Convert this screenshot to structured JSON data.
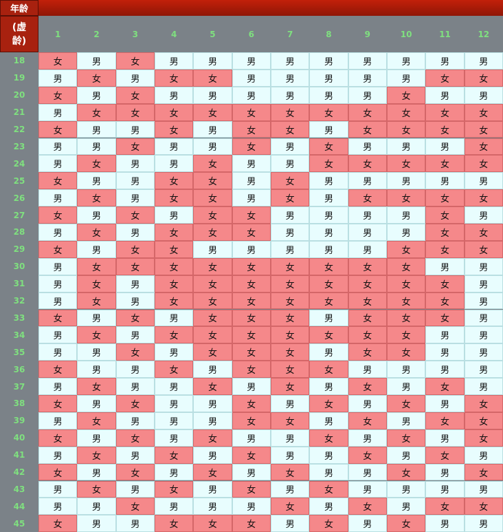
{
  "header": {
    "title_top": "年龄",
    "title_bottom_1": "(虚",
    "title_bottom_2": "龄)"
  },
  "colors": {
    "female": "#f5888a",
    "male": "#e8fdfe",
    "female_border": "#d46668",
    "male_border": "#b9dfe2",
    "header_red": "#a8210f",
    "label_green": "#7fe07f"
  },
  "chart_data": {
    "type": "table",
    "columns": [
      "1",
      "2",
      "3",
      "4",
      "5",
      "6",
      "7",
      "8",
      "9",
      "10",
      "11",
      "12"
    ],
    "rows": [
      {
        "age": "18",
        "cells": [
          "女",
          "男",
          "女",
          "男",
          "男",
          "男",
          "男",
          "男",
          "男",
          "男",
          "男",
          "男"
        ]
      },
      {
        "age": "19",
        "cells": [
          "男",
          "女",
          "男",
          "女",
          "女",
          "男",
          "男",
          "男",
          "男",
          "男",
          "女",
          "女"
        ]
      },
      {
        "age": "20",
        "cells": [
          "女",
          "男",
          "女",
          "男",
          "男",
          "男",
          "男",
          "男",
          "男",
          "女",
          "男",
          "男"
        ]
      },
      {
        "age": "21",
        "cells": [
          "男",
          "女",
          "女",
          "女",
          "女",
          "女",
          "女",
          "女",
          "女",
          "女",
          "女",
          "女"
        ]
      },
      {
        "age": "22",
        "cells": [
          "女",
          "男",
          "男",
          "女",
          "男",
          "女",
          "女",
          "男",
          "女",
          "女",
          "女",
          "女"
        ]
      },
      {
        "age": "23",
        "cells": [
          "男",
          "男",
          "女",
          "男",
          "男",
          "女",
          "男",
          "女",
          "男",
          "男",
          "男",
          "女"
        ]
      },
      {
        "age": "24",
        "cells": [
          "男",
          "女",
          "男",
          "男",
          "女",
          "男",
          "男",
          "女",
          "女",
          "女",
          "女",
          "女"
        ]
      },
      {
        "age": "25",
        "cells": [
          "女",
          "男",
          "男",
          "女",
          "女",
          "男",
          "女",
          "男",
          "男",
          "男",
          "男",
          "男"
        ]
      },
      {
        "age": "26",
        "cells": [
          "男",
          "女",
          "男",
          "女",
          "女",
          "男",
          "女",
          "男",
          "女",
          "女",
          "女",
          "女"
        ]
      },
      {
        "age": "27",
        "cells": [
          "女",
          "男",
          "女",
          "男",
          "女",
          "女",
          "男",
          "男",
          "男",
          "男",
          "女",
          "男"
        ]
      },
      {
        "age": "28",
        "cells": [
          "男",
          "女",
          "男",
          "女",
          "女",
          "女",
          "男",
          "男",
          "男",
          "男",
          "女",
          "女"
        ]
      },
      {
        "age": "29",
        "cells": [
          "女",
          "男",
          "女",
          "女",
          "男",
          "男",
          "男",
          "男",
          "男",
          "女",
          "女",
          "女"
        ]
      },
      {
        "age": "30",
        "cells": [
          "男",
          "女",
          "女",
          "女",
          "女",
          "女",
          "女",
          "女",
          "女",
          "女",
          "男",
          "男"
        ]
      },
      {
        "age": "31",
        "cells": [
          "男",
          "女",
          "男",
          "女",
          "女",
          "女",
          "女",
          "女",
          "女",
          "女",
          "女",
          "男"
        ]
      },
      {
        "age": "32",
        "cells": [
          "男",
          "女",
          "男",
          "女",
          "女",
          "女",
          "女",
          "女",
          "女",
          "女",
          "女",
          "男"
        ]
      },
      {
        "age": "33",
        "cells": [
          "女",
          "男",
          "女",
          "男",
          "女",
          "女",
          "女",
          "男",
          "女",
          "女",
          "女",
          "男"
        ]
      },
      {
        "age": "34",
        "cells": [
          "男",
          "女",
          "男",
          "女",
          "女",
          "女",
          "女",
          "女",
          "女",
          "女",
          "男",
          "男"
        ]
      },
      {
        "age": "35",
        "cells": [
          "男",
          "男",
          "女",
          "男",
          "女",
          "女",
          "女",
          "男",
          "女",
          "女",
          "男",
          "男"
        ]
      },
      {
        "age": "36",
        "cells": [
          "女",
          "男",
          "男",
          "女",
          "男",
          "女",
          "女",
          "女",
          "男",
          "男",
          "男",
          "男"
        ]
      },
      {
        "age": "37",
        "cells": [
          "男",
          "女",
          "男",
          "男",
          "女",
          "男",
          "女",
          "男",
          "女",
          "男",
          "女",
          "男"
        ]
      },
      {
        "age": "38",
        "cells": [
          "女",
          "男",
          "女",
          "男",
          "男",
          "女",
          "男",
          "女",
          "男",
          "女",
          "男",
          "女"
        ]
      },
      {
        "age": "39",
        "cells": [
          "男",
          "女",
          "男",
          "男",
          "男",
          "女",
          "女",
          "男",
          "女",
          "男",
          "女",
          "女"
        ]
      },
      {
        "age": "40",
        "cells": [
          "女",
          "男",
          "女",
          "男",
          "女",
          "男",
          "男",
          "女",
          "男",
          "女",
          "男",
          "女"
        ]
      },
      {
        "age": "41",
        "cells": [
          "男",
          "女",
          "男",
          "女",
          "男",
          "女",
          "男",
          "男",
          "女",
          "男",
          "女",
          "男"
        ]
      },
      {
        "age": "42",
        "cells": [
          "女",
          "男",
          "女",
          "男",
          "女",
          "男",
          "女",
          "男",
          "男",
          "女",
          "男",
          "女"
        ]
      },
      {
        "age": "43",
        "cells": [
          "男",
          "女",
          "男",
          "女",
          "男",
          "女",
          "男",
          "女",
          "男",
          "男",
          "男",
          "男"
        ]
      },
      {
        "age": "44",
        "cells": [
          "男",
          "男",
          "女",
          "男",
          "男",
          "男",
          "女",
          "男",
          "女",
          "男",
          "女",
          "女"
        ]
      },
      {
        "age": "45",
        "cells": [
          "女",
          "男",
          "男",
          "女",
          "女",
          "女",
          "男",
          "女",
          "男",
          "女",
          "男",
          "男"
        ]
      }
    ]
  }
}
